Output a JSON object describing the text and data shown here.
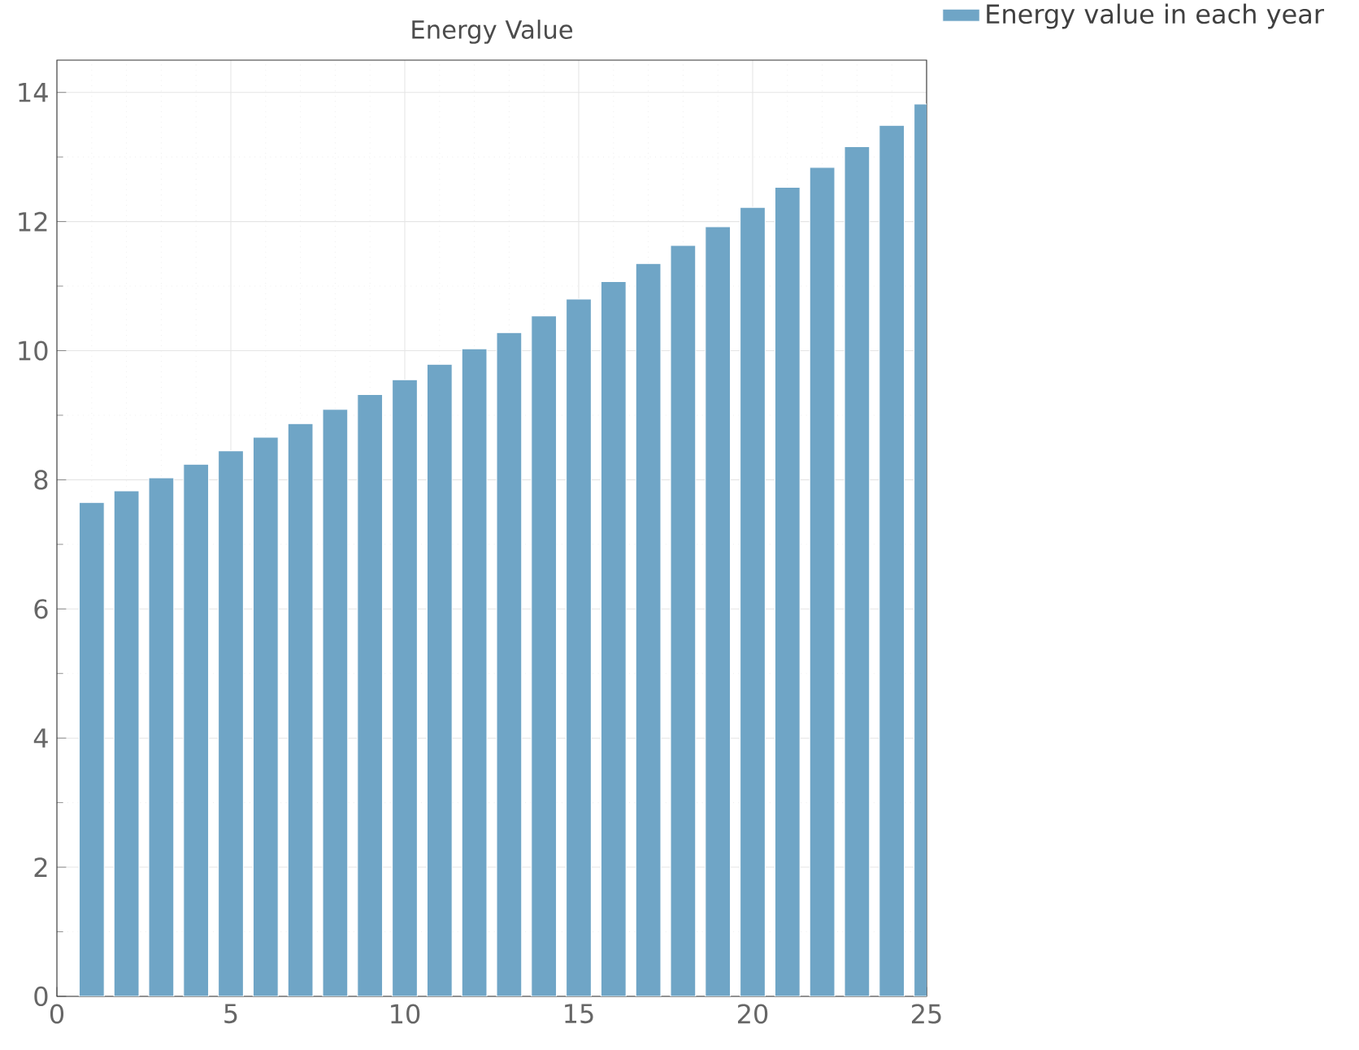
{
  "chart_data": {
    "type": "bar",
    "title": "Energy Value",
    "x": [
      1,
      2,
      3,
      4,
      5,
      6,
      7,
      8,
      9,
      10,
      11,
      12,
      13,
      14,
      15,
      16,
      17,
      18,
      19,
      20,
      21,
      22,
      23,
      24,
      25
    ],
    "series": [
      {
        "name": "Energy value in each year",
        "color": "#6fa5c6",
        "values": [
          7.65,
          7.83,
          8.03,
          8.24,
          8.45,
          8.66,
          8.87,
          9.09,
          9.32,
          9.55,
          9.79,
          10.03,
          10.28,
          10.54,
          10.8,
          11.07,
          11.35,
          11.63,
          11.92,
          12.22,
          12.53,
          12.84,
          13.16,
          13.49,
          13.82
        ]
      }
    ],
    "xlim": [
      0,
      25
    ],
    "ylim": [
      0,
      14.5
    ],
    "xticks": [
      0,
      5,
      10,
      15,
      20,
      25
    ],
    "yticks": [
      0,
      2,
      4,
      6,
      8,
      10,
      12,
      14
    ],
    "grid": true,
    "legend": "top right"
  }
}
